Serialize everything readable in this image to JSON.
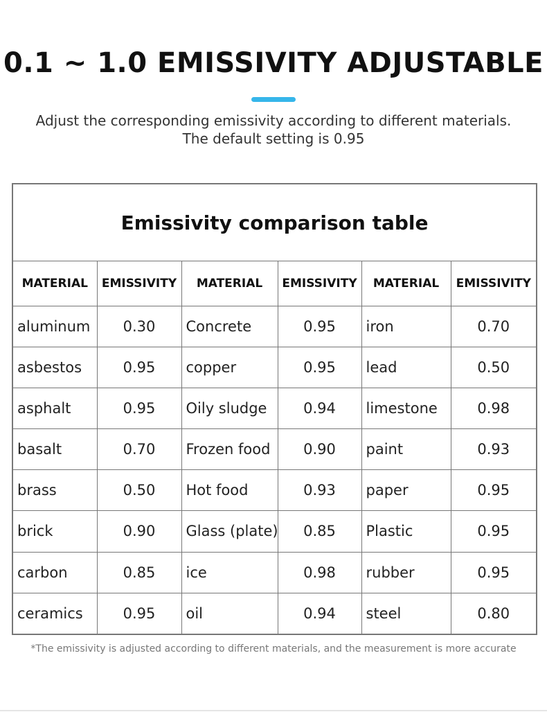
{
  "header": {
    "title": "0.1 ~ 1.0 EMISSIVITY ADJUSTABLE",
    "subtitle": [
      "Adjust the corresponding emissivity according to different materials.",
      "The default setting is 0.95"
    ]
  },
  "table": {
    "title": "Emissivity comparison table",
    "headers": [
      "MATERIAL",
      "EMISSIVITY",
      "MATERIAL",
      "EMISSIVITY",
      "MATERIAL",
      "EMISSIVITY"
    ],
    "rows": [
      [
        "aluminum",
        "0.30",
        "Concrete",
        "0.95",
        "iron",
        "0.70"
      ],
      [
        "asbestos",
        "0.95",
        "copper",
        "0.95",
        "lead",
        "0.50"
      ],
      [
        "asphalt",
        "0.95",
        "Oily sludge",
        "0.94",
        "limestone",
        "0.98"
      ],
      [
        "basalt",
        "0.70",
        "Frozen food",
        "0.90",
        "paint",
        "0.93"
      ],
      [
        "brass",
        "0.50",
        "Hot food",
        "0.93",
        "paper",
        "0.95"
      ],
      [
        "brick",
        "0.90",
        "Glass (plate)",
        "0.85",
        "Plastic",
        "0.95"
      ],
      [
        "carbon",
        "0.85",
        "ice",
        "0.98",
        "rubber",
        "0.95"
      ],
      [
        "ceramics",
        "0.95",
        "oil",
        "0.94",
        "steel",
        "0.80"
      ]
    ]
  },
  "footnote": "*The emissivity is adjusted according to different materials, and the measurement is more accurate"
}
